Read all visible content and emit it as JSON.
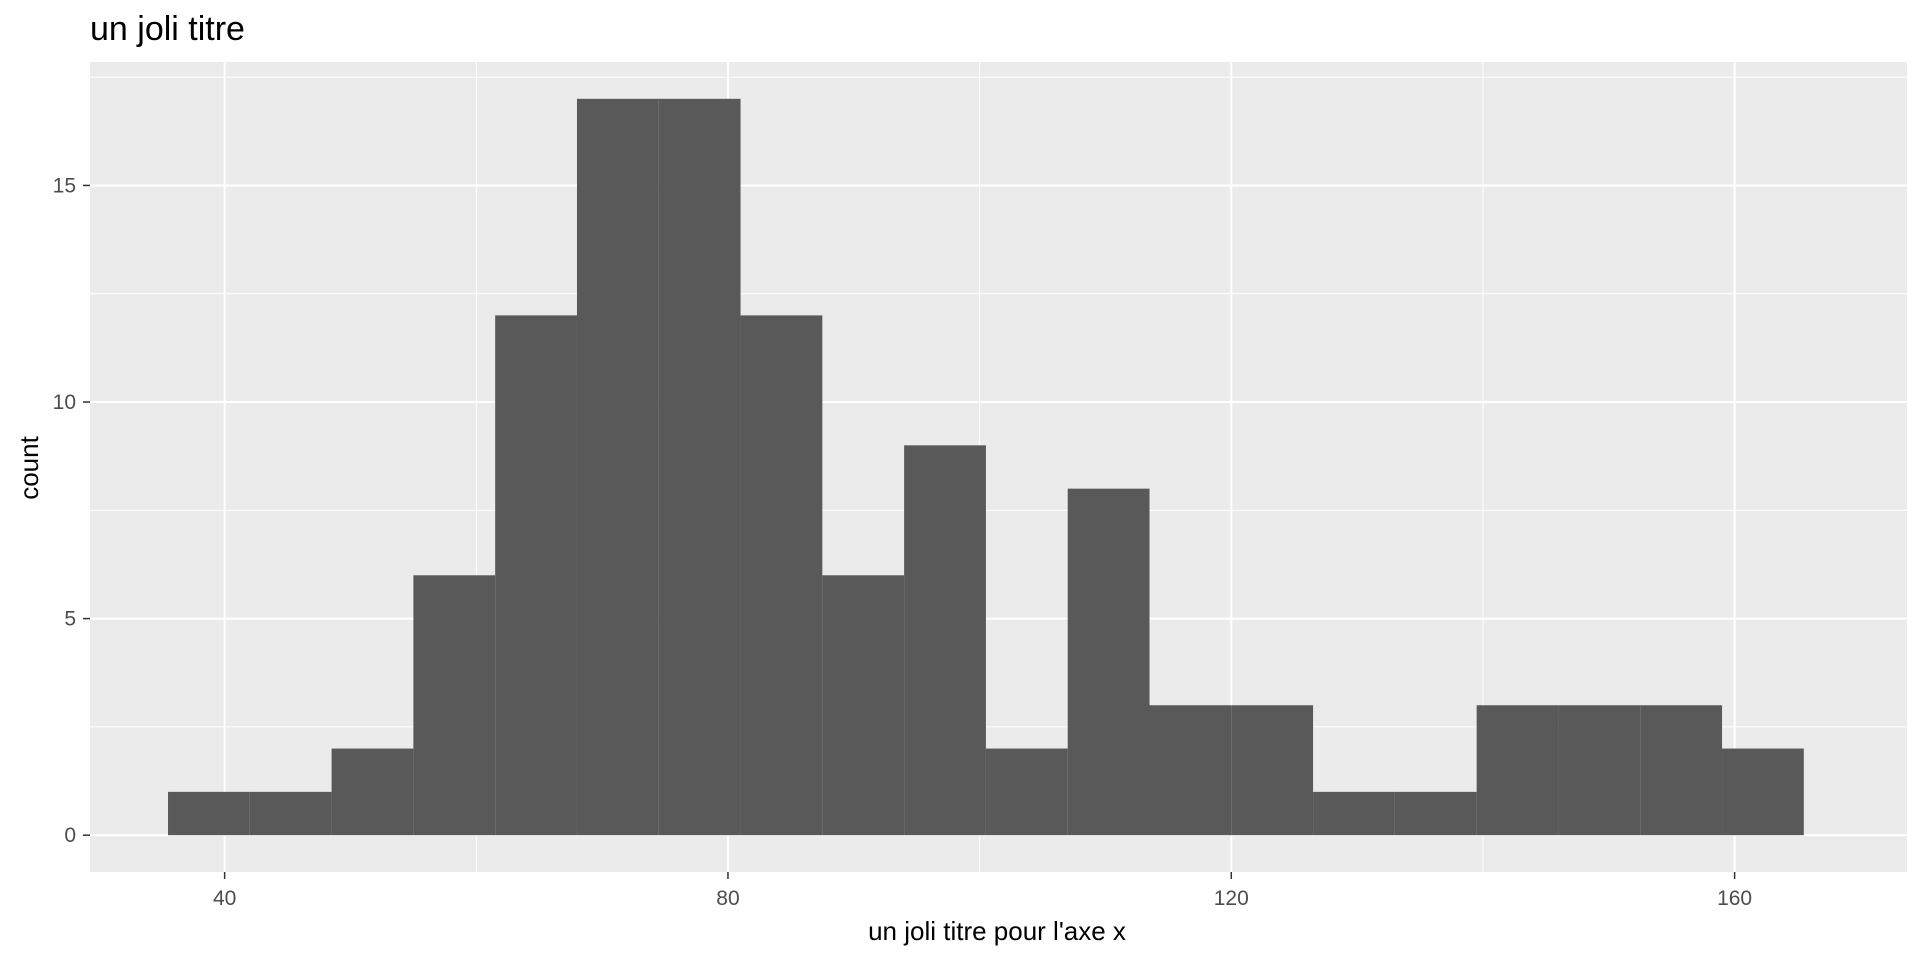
{
  "chart_data": {
    "type": "bar",
    "subtype": "histogram",
    "title": "un joli titre",
    "xlabel": "un joli titre pour l'axe x",
    "ylabel": "count",
    "xlim": [
      29.3,
      173.7
    ],
    "ylim": [
      -0.85,
      17.85
    ],
    "x_ticks": [
      40,
      80,
      120,
      160
    ],
    "y_ticks": [
      0,
      5,
      10,
      15
    ],
    "grid": true,
    "colors": {
      "panel_background": "#ebebeb",
      "grid_major": "#ffffff",
      "bar_fill": "#595959",
      "tick_label": "#4d4d4d"
    },
    "bins": [
      {
        "x_start": 35.5,
        "x_end": 42.0,
        "count": 1
      },
      {
        "x_start": 42.0,
        "x_end": 48.5,
        "count": 1
      },
      {
        "x_start": 48.5,
        "x_end": 55.0,
        "count": 2
      },
      {
        "x_start": 55.0,
        "x_end": 61.5,
        "count": 6
      },
      {
        "x_start": 61.5,
        "x_end": 68.0,
        "count": 12
      },
      {
        "x_start": 68.0,
        "x_end": 74.5,
        "count": 17
      },
      {
        "x_start": 74.5,
        "x_end": 81.0,
        "count": 17
      },
      {
        "x_start": 81.0,
        "x_end": 87.5,
        "count": 12
      },
      {
        "x_start": 87.5,
        "x_end": 94.0,
        "count": 6
      },
      {
        "x_start": 94.0,
        "x_end": 100.5,
        "count": 9
      },
      {
        "x_start": 100.5,
        "x_end": 107.0,
        "count": 2
      },
      {
        "x_start": 107.0,
        "x_end": 113.5,
        "count": 8
      },
      {
        "x_start": 113.5,
        "x_end": 120.0,
        "count": 3
      },
      {
        "x_start": 120.0,
        "x_end": 126.5,
        "count": 3
      },
      {
        "x_start": 126.5,
        "x_end": 133.0,
        "count": 1
      },
      {
        "x_start": 133.0,
        "x_end": 139.5,
        "count": 1
      },
      {
        "x_start": 139.5,
        "x_end": 146.0,
        "count": 3
      },
      {
        "x_start": 146.0,
        "x_end": 152.5,
        "count": 3
      },
      {
        "x_start": 152.5,
        "x_end": 159.0,
        "count": 3
      },
      {
        "x_start": 159.0,
        "x_end": 165.5,
        "count": 2
      }
    ]
  }
}
